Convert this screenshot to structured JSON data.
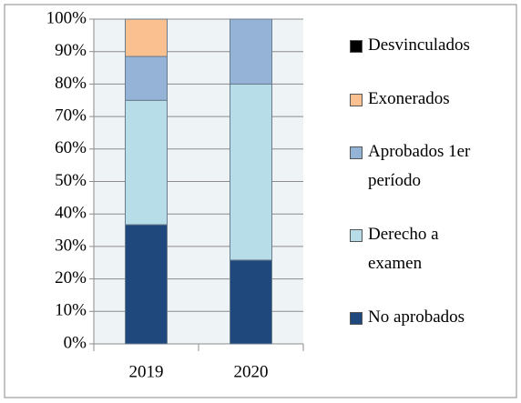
{
  "chart_data": {
    "type": "stacked_bar",
    "categories": [
      "2019",
      "2020"
    ],
    "series": [
      {
        "name": "No aprobados",
        "color": "#1f497d",
        "values": [
          36.7,
          25.8
        ]
      },
      {
        "name": "Derecho a examen",
        "color": "#b7dde8",
        "values": [
          38.3,
          54.2
        ]
      },
      {
        "name": "Aprobados 1er período",
        "color": "#95b3d7",
        "values": [
          13.5,
          20
        ]
      },
      {
        "name": "Exonerados",
        "color": "#fac090",
        "values": [
          11.5,
          0
        ]
      },
      {
        "name": "Desvinculados",
        "color": "#000000",
        "values": [
          0,
          0
        ]
      }
    ],
    "ylim": [
      0,
      100
    ],
    "yticks": [
      {
        "value": 0,
        "label": "0%"
      },
      {
        "value": 10,
        "label": "10%"
      },
      {
        "value": 20,
        "label": "20%"
      },
      {
        "value": 30,
        "label": "30%"
      },
      {
        "value": 40,
        "label": "40%"
      },
      {
        "value": 50,
        "label": "50%"
      },
      {
        "value": 60,
        "label": "60%"
      },
      {
        "value": 70,
        "label": "70%"
      },
      {
        "value": 80,
        "label": "80%"
      },
      {
        "value": 90,
        "label": "90%"
      },
      {
        "value": 100,
        "label": "100%"
      }
    ],
    "grid": true,
    "legend": "right"
  }
}
